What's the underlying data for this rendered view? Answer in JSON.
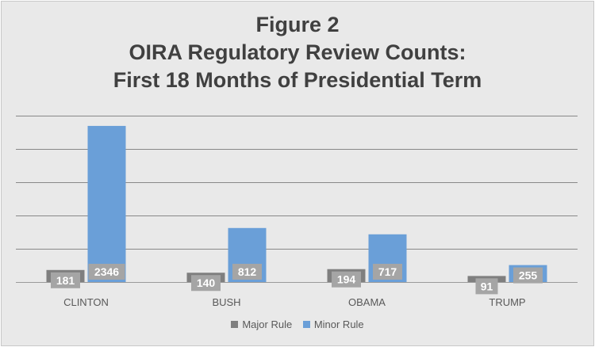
{
  "title_lines": [
    "Figure 2",
    "OIRA Regulatory Review Counts:",
    "First 18 Months of  Presidential Term"
  ],
  "colors": {
    "major": "#7f7f7f",
    "minor": "#6a9fd8",
    "label_box": "#a5a5a5",
    "gridline": "#3a3a3a",
    "axis_text": "#595959"
  },
  "chart_data": {
    "type": "bar",
    "title": "Figure 2 OIRA Regulatory Review Counts: First 18 Months of  Presidential Term",
    "categories": [
      "CLINTON",
      "BUSH",
      "OBAMA",
      "TRUMP"
    ],
    "series": [
      {
        "name": "Major Rule",
        "values": [
          181,
          140,
          194,
          91
        ]
      },
      {
        "name": "Minor Rule",
        "values": [
          2346,
          812,
          717,
          255
        ]
      }
    ],
    "ylim": [
      0,
      2500
    ],
    "grid": true,
    "y_tick_labels_shown": false,
    "legend": "bottom"
  }
}
